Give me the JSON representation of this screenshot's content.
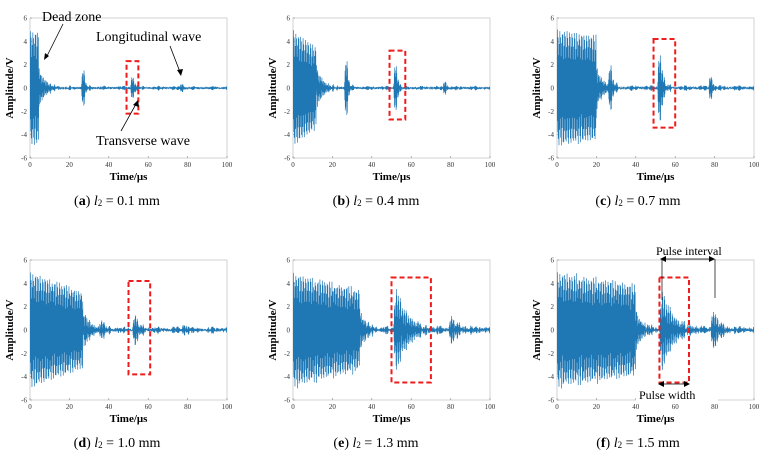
{
  "chart_data": [
    {
      "type": "line",
      "id": "a",
      "caption": {
        "letter": "a",
        "var": "l",
        "sub": "2",
        "text": " = 0.1 mm"
      },
      "xlabel": "Time/μs",
      "ylabel": "Amplitude/V",
      "xlim": [
        0,
        100
      ],
      "ylim": [
        -6,
        6
      ],
      "xticks": [
        0,
        20,
        40,
        60,
        80,
        100
      ],
      "yticks": [
        -6,
        -4,
        -2,
        0,
        2,
        4,
        6
      ],
      "signal": {
        "burst_end": 4.5,
        "burst_amp": 4.8,
        "burst_decay": 0,
        "burst_hf": 0.9,
        "burst_period": 1.1,
        "noise": 0.15,
        "echoes": [
          {
            "t": 27,
            "a": 2.2,
            "w": 1.0
          },
          {
            "t": 52,
            "a": 1.5,
            "w": 1.0
          },
          {
            "t": 77,
            "a": 0.5,
            "w": 1.0
          }
        ]
      },
      "box": {
        "x0": 49,
        "x1": 55,
        "y0": -2.2,
        "y1": 2.3
      },
      "annotations": [
        {
          "text": "Dead zone",
          "size": 14
        },
        {
          "text": "Longitudinal wave",
          "size": 14
        },
        {
          "text": "Transverse wave",
          "size": 14
        }
      ]
    },
    {
      "type": "line",
      "id": "b",
      "caption": {
        "letter": "b",
        "var": "l",
        "sub": "2",
        "text": " = 0.4 mm"
      },
      "xlabel": "Time/μs",
      "ylabel": "Amplitude/V",
      "xlim": [
        0,
        100
      ],
      "ylim": [
        -6,
        6
      ],
      "xticks": [
        0,
        20,
        40,
        60,
        80,
        100
      ],
      "yticks": [
        -6,
        -4,
        -2,
        0,
        2,
        4,
        6
      ],
      "signal": {
        "burst_end": 12,
        "burst_amp": 4.9,
        "burst_decay": 0.3,
        "burst_hf": 0.9,
        "burst_period": 1.1,
        "noise": 0.15,
        "echoes": [
          {
            "t": 27,
            "a": 3.5,
            "w": 1.0
          },
          {
            "t": 52,
            "a": 3.0,
            "w": 1.0
          },
          {
            "t": 77,
            "a": 0.8,
            "w": 1.0
          }
        ]
      },
      "box": {
        "x0": 49,
        "x1": 57,
        "y0": -2.7,
        "y1": 3.2
      },
      "annotations": []
    },
    {
      "type": "line",
      "id": "c",
      "caption": {
        "letter": "c",
        "var": "l",
        "sub": "2",
        "text": " = 0.7 mm"
      },
      "xlabel": "Time/μs",
      "ylabel": "Amplitude/V",
      "xlim": [
        0,
        100
      ],
      "ylim": [
        -6,
        6
      ],
      "xticks": [
        0,
        20,
        40,
        60,
        80,
        100
      ],
      "yticks": [
        -6,
        -4,
        -2,
        0,
        2,
        4,
        6
      ],
      "signal": {
        "burst_end": 20,
        "burst_amp": 4.9,
        "burst_decay": 0.1,
        "burst_hf": 0.9,
        "burst_period": 1.1,
        "noise": 0.2,
        "echoes": [
          {
            "t": 27,
            "a": 3.0,
            "w": 1.2
          },
          {
            "t": 52,
            "a": 4.0,
            "w": 1.5
          },
          {
            "t": 78,
            "a": 1.5,
            "w": 1.0
          }
        ]
      },
      "box": {
        "x0": 49,
        "x1": 60,
        "y0": -3.4,
        "y1": 4.2
      },
      "annotations": []
    },
    {
      "type": "line",
      "id": "d",
      "caption": {
        "letter": "d",
        "var": "l",
        "sub": "2",
        "text": " = 1.0 mm"
      },
      "xlabel": "Time/μs",
      "ylabel": "Amplitude/V",
      "xlim": [
        0,
        100
      ],
      "ylim": [
        -6,
        6
      ],
      "xticks": [
        0,
        20,
        40,
        60,
        80,
        100
      ],
      "yticks": [
        -6,
        -4,
        -2,
        0,
        2,
        4,
        6
      ],
      "signal": {
        "burst_end": 27,
        "burst_amp": 4.9,
        "burst_decay": 0.35,
        "burst_hf": 0.9,
        "burst_period": 1.1,
        "noise": 0.25,
        "echoes": [
          {
            "t": 36,
            "a": 0.9,
            "w": 3.0
          },
          {
            "t": 53,
            "a": 1.5,
            "w": 2.5
          },
          {
            "t": 78,
            "a": 0.6,
            "w": 2.0
          }
        ]
      },
      "box": {
        "x0": 50,
        "x1": 61,
        "y0": -3.8,
        "y1": 4.2
      },
      "annotations": []
    },
    {
      "type": "line",
      "id": "e",
      "caption": {
        "letter": "e",
        "var": "l",
        "sub": "2",
        "text": " = 1.3 mm"
      },
      "xlabel": "Time/μs",
      "ylabel": "Amplitude/V",
      "xlim": [
        0,
        100
      ],
      "ylim": [
        -6,
        6
      ],
      "xticks": [
        0,
        20,
        40,
        60,
        80,
        100
      ],
      "yticks": [
        -6,
        -4,
        -2,
        0,
        2,
        4,
        6
      ],
      "signal": {
        "burst_end": 34,
        "burst_amp": 4.8,
        "burst_decay": 0.3,
        "burst_hf": 0.9,
        "burst_period": 1.1,
        "noise": 0.3,
        "echoes": [
          {
            "t": 52,
            "a": 3.8,
            "w": 6.0
          },
          {
            "t": 80,
            "a": 1.2,
            "w": 4.0
          }
        ]
      },
      "box": {
        "x0": 50,
        "x1": 70,
        "y0": -4.5,
        "y1": 4.5
      },
      "annotations": []
    },
    {
      "type": "line",
      "id": "f",
      "caption": {
        "letter": "f",
        "var": "l",
        "sub": "2",
        "text": " = 1.5 mm"
      },
      "xlabel": "Time/μs",
      "ylabel": "Amplitude/V",
      "xlim": [
        0,
        100
      ],
      "ylim": [
        -6,
        6
      ],
      "xticks": [
        0,
        20,
        40,
        60,
        80,
        100
      ],
      "yticks": [
        -6,
        -4,
        -2,
        0,
        2,
        4,
        6
      ],
      "signal": {
        "burst_end": 40,
        "burst_amp": 4.8,
        "burst_decay": 0.2,
        "burst_hf": 0.9,
        "burst_period": 1.1,
        "noise": 0.3,
        "echoes": [
          {
            "t": 53,
            "a": 3.6,
            "w": 6.0
          },
          {
            "t": 79,
            "a": 1.8,
            "w": 3.5
          }
        ]
      },
      "box": {
        "x0": 52,
        "x1": 67,
        "y0": -4.5,
        "y1": 4.5
      },
      "annotations": [
        {
          "text": "Pulse interval",
          "size": 12
        },
        {
          "text": "Pulse width",
          "size": 12
        }
      ]
    }
  ]
}
